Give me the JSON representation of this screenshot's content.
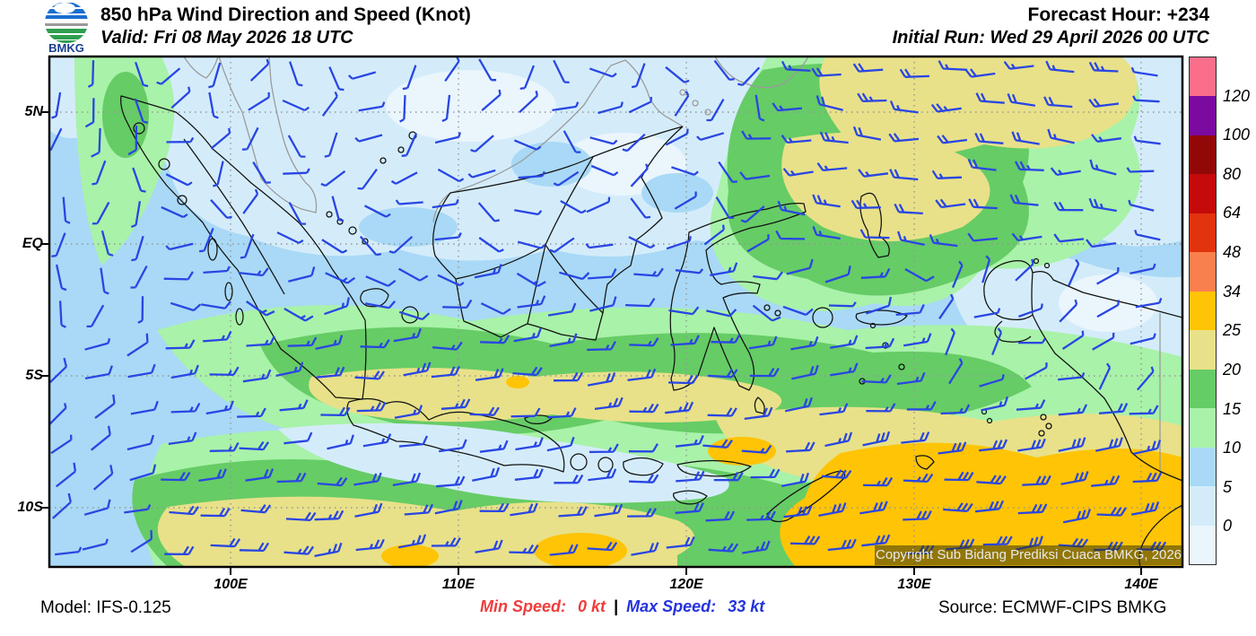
{
  "header": {
    "logo_text": "BMKG",
    "title": "850 hPa Wind Direction and Speed (Knot)",
    "valid_label": "Valid: Fri 08 May 2026 18 UTC",
    "forecast_hour": "Forecast Hour: +234",
    "initial_run": "Initial Run: Wed 29 April 2026 00 UTC"
  },
  "map_overlay": {
    "copyright": "Copyright Sub Bidang Prediksi Cuaca BMKG, 2026"
  },
  "axes": {
    "lat_labels": [
      "5N",
      "EQ",
      "5S",
      "10S"
    ],
    "lon_labels": [
      "100E",
      "110E",
      "120E",
      "130E",
      "140E"
    ]
  },
  "colorbar": {
    "labels": [
      "120",
      "100",
      "80",
      "64",
      "48",
      "34",
      "25",
      "20",
      "15",
      "10",
      "5",
      "0"
    ],
    "segment_colors_top_to_bottom": [
      "#FB6E8B",
      "#7A0AA0",
      "#920808",
      "#C40A0A",
      "#E2330F",
      "#FA7F4F",
      "#FFC405",
      "#E8E189",
      "#66CC66",
      "#A9F2A9",
      "#A9D9F6",
      "#D4ECFA",
      "#EAF5FC"
    ]
  },
  "footer": {
    "model": "Model: IFS-0.125",
    "min_speed_label": "Min Speed:",
    "min_speed_value": "0 kt",
    "separator": "|",
    "max_speed_label": "Max Speed:",
    "max_speed_value": "33 kt",
    "source": "Source: ECMWF-CIPS BMKG"
  },
  "colors": {
    "barb": "#2946E3",
    "coast": "#111111",
    "foreign_coast": "#9B9B9B",
    "grid": "#969696",
    "min_speed_text": "#F03C3C",
    "max_speed_text": "#2433DD",
    "logo_blue": "#1B6FD0",
    "logo_green": "#2E9E4F",
    "logo_text_blue": "#1A3F8F"
  },
  "chart_data": {
    "type": "map",
    "title": "850 hPa Wind Direction and Speed (Knot)",
    "level_hpa": 850,
    "unit": "knot",
    "forecast_hour": 234,
    "valid_time": "Fri 08 May 2026 18 UTC",
    "initial_run": "Wed 29 April 2026 00 UTC",
    "model": "IFS-0.125",
    "source": "ECMWF-CIPS BMKG",
    "min_speed_kt": 0,
    "max_speed_kt": 33,
    "speed_scale_kt": [
      0,
      5,
      10,
      15,
      20,
      25,
      34,
      48,
      64,
      80,
      100,
      120
    ],
    "lon_ticks": [
      "100E",
      "110E",
      "120E",
      "130E",
      "140E"
    ],
    "lat_ticks": [
      "5N",
      "EQ",
      "5S",
      "10S"
    ],
    "legend_position": "right",
    "grid": true
  }
}
